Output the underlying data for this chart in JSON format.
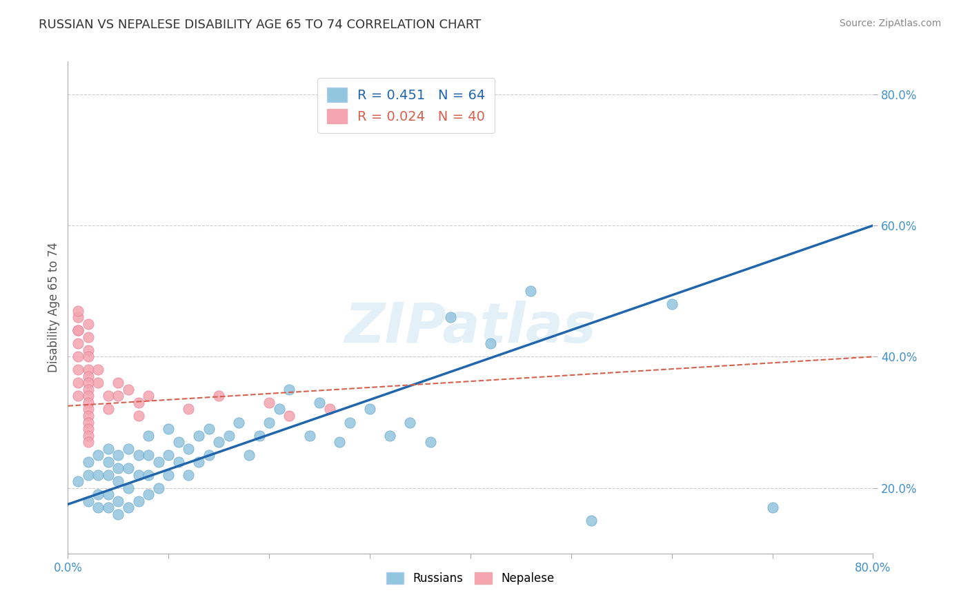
{
  "title": "RUSSIAN VS NEPALESE DISABILITY AGE 65 TO 74 CORRELATION CHART",
  "source_text": "Source: ZipAtlas.com",
  "ylabel": "Disability Age 65 to 74",
  "xlim": [
    0.0,
    0.8
  ],
  "ylim": [
    0.1,
    0.85
  ],
  "yticks": [
    0.2,
    0.4,
    0.6,
    0.8
  ],
  "ytick_labels": [
    "20.0%",
    "40.0%",
    "60.0%",
    "80.0%"
  ],
  "xticks": [
    0.0,
    0.1,
    0.2,
    0.3,
    0.4,
    0.5,
    0.6,
    0.7,
    0.8
  ],
  "xtick_labels": [
    "0.0%",
    "",
    "",
    "",
    "",
    "",
    "",
    "",
    "80.0%"
  ],
  "russian_R": 0.451,
  "russian_N": 64,
  "nepalese_R": 0.024,
  "nepalese_N": 40,
  "dot_color_russian": "#92c5de",
  "dot_color_nepalese": "#f4a5b0",
  "line_color_russian": "#2166ac",
  "line_color_nepalese": "#d6604d",
  "background_color": "#ffffff",
  "grid_color": "#cccccc",
  "russians_x": [
    0.01,
    0.02,
    0.02,
    0.02,
    0.03,
    0.03,
    0.03,
    0.03,
    0.04,
    0.04,
    0.04,
    0.04,
    0.04,
    0.05,
    0.05,
    0.05,
    0.05,
    0.05,
    0.06,
    0.06,
    0.06,
    0.06,
    0.07,
    0.07,
    0.07,
    0.08,
    0.08,
    0.08,
    0.08,
    0.09,
    0.09,
    0.1,
    0.1,
    0.1,
    0.11,
    0.11,
    0.12,
    0.12,
    0.13,
    0.13,
    0.14,
    0.14,
    0.15,
    0.16,
    0.17,
    0.18,
    0.19,
    0.2,
    0.21,
    0.22,
    0.24,
    0.25,
    0.27,
    0.28,
    0.3,
    0.32,
    0.34,
    0.36,
    0.38,
    0.42,
    0.46,
    0.52,
    0.6,
    0.7
  ],
  "russians_y": [
    0.21,
    0.18,
    0.22,
    0.24,
    0.17,
    0.19,
    0.22,
    0.25,
    0.17,
    0.19,
    0.22,
    0.24,
    0.26,
    0.16,
    0.18,
    0.21,
    0.23,
    0.25,
    0.17,
    0.2,
    0.23,
    0.26,
    0.18,
    0.22,
    0.25,
    0.19,
    0.22,
    0.25,
    0.28,
    0.2,
    0.24,
    0.22,
    0.25,
    0.29,
    0.24,
    0.27,
    0.22,
    0.26,
    0.24,
    0.28,
    0.25,
    0.29,
    0.27,
    0.28,
    0.3,
    0.25,
    0.28,
    0.3,
    0.32,
    0.35,
    0.28,
    0.33,
    0.27,
    0.3,
    0.32,
    0.28,
    0.3,
    0.27,
    0.46,
    0.42,
    0.5,
    0.15,
    0.48,
    0.17
  ],
  "nepalese_x": [
    0.01,
    0.01,
    0.01,
    0.01,
    0.01,
    0.01,
    0.01,
    0.01,
    0.01,
    0.02,
    0.02,
    0.02,
    0.02,
    0.02,
    0.02,
    0.02,
    0.02,
    0.02,
    0.02,
    0.02,
    0.02,
    0.02,
    0.02,
    0.02,
    0.02,
    0.03,
    0.03,
    0.04,
    0.04,
    0.05,
    0.05,
    0.06,
    0.07,
    0.07,
    0.08,
    0.12,
    0.15,
    0.2,
    0.22,
    0.26
  ],
  "nepalese_y": [
    0.44,
    0.46,
    0.47,
    0.44,
    0.42,
    0.4,
    0.38,
    0.36,
    0.34,
    0.45,
    0.43,
    0.41,
    0.4,
    0.38,
    0.37,
    0.36,
    0.35,
    0.34,
    0.33,
    0.32,
    0.31,
    0.3,
    0.29,
    0.28,
    0.27,
    0.38,
    0.36,
    0.34,
    0.32,
    0.36,
    0.34,
    0.35,
    0.33,
    0.31,
    0.34,
    0.32,
    0.34,
    0.33,
    0.31,
    0.32
  ],
  "russian_trend_x0": 0.0,
  "russian_trend_y0": 0.175,
  "russian_trend_x1": 0.8,
  "russian_trend_y1": 0.6,
  "nepalese_trend_x0": 0.0,
  "nepalese_trend_y0": 0.325,
  "nepalese_trend_x1": 0.8,
  "nepalese_trend_y1": 0.4
}
